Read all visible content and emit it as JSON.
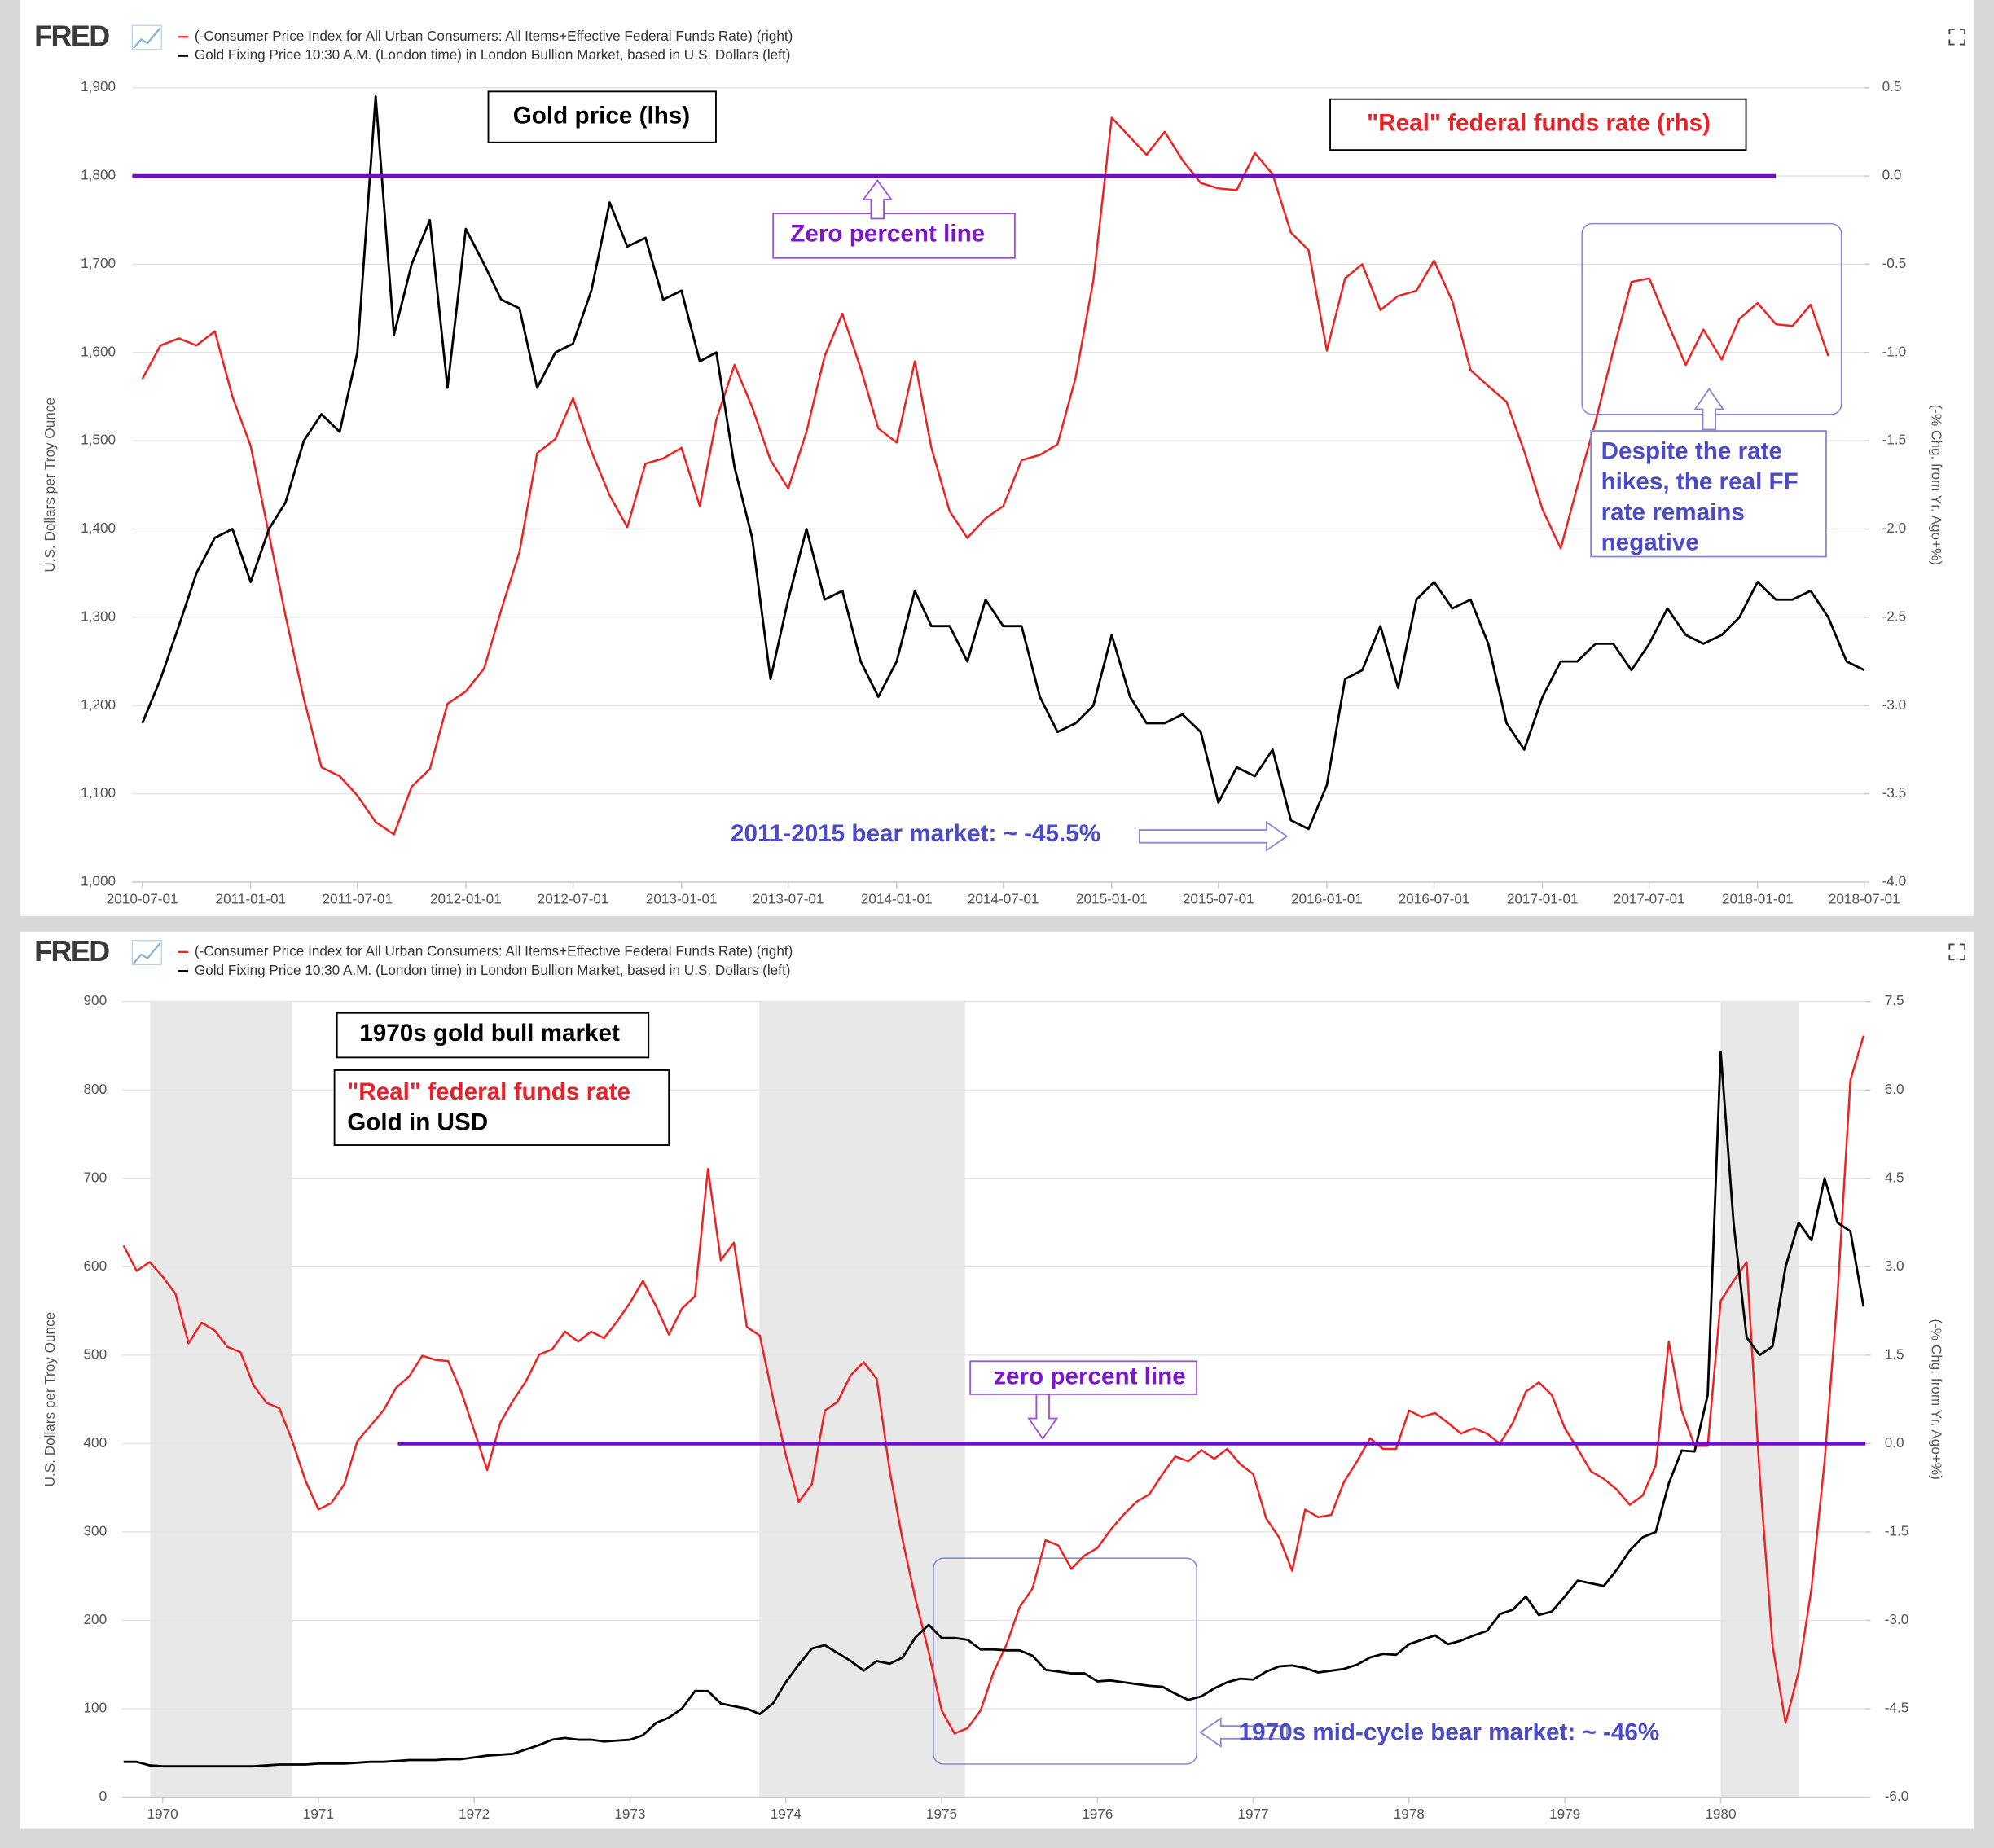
{
  "chart_data": [
    {
      "type": "line",
      "source": "FRED",
      "y_label": "U.S. Dollars per Troy Ounce",
      "y2_label": "(-% Chg. from Yr. Ago+%)",
      "xlim": [
        "2010-06-14",
        "2018-07-01"
      ],
      "xticks": [
        "2010-07-01",
        "2011-01-01",
        "2011-07-01",
        "2012-01-01",
        "2012-07-01",
        "2013-01-01",
        "2013-07-01",
        "2014-01-01",
        "2014-07-01",
        "2015-01-01",
        "2015-07-01",
        "2016-01-01",
        "2016-07-01",
        "2017-01-01",
        "2017-07-01",
        "2018-01-01",
        "2018-07-01"
      ],
      "ylim": [
        1000,
        1900
      ],
      "yticks": [
        {
          "value": 1000,
          "label": "1,000"
        },
        {
          "value": 1100,
          "label": "1,100"
        },
        {
          "value": 1200,
          "label": "1,200"
        },
        {
          "value": 1300,
          "label": "1,300"
        },
        {
          "value": 1400,
          "label": "1,400"
        },
        {
          "value": 1500,
          "label": "1,500"
        },
        {
          "value": 1600,
          "label": "1,600"
        },
        {
          "value": 1700,
          "label": "1,700"
        },
        {
          "value": 1800,
          "label": "1,800"
        },
        {
          "value": 1900,
          "label": "1,900"
        }
      ],
      "y2lim": [
        -4,
        0.5
      ],
      "y2ticks": [
        {
          "value": -4,
          "label": "-4.0"
        },
        -3.5,
        {
          "value": -3,
          "label": "-3.0"
        },
        -2.5,
        {
          "value": -2,
          "label": "-2.0"
        },
        -1.5,
        {
          "value": -1,
          "label": "-1.0"
        },
        -0.5,
        {
          "value": 0,
          "label": "0.0"
        },
        0.5
      ],
      "grid": true,
      "x": [
        "2010-07-01",
        "2010-08-01",
        "2010-09-01",
        "2010-10-01",
        "2010-11-01",
        "2010-12-01",
        "2011-01-01",
        "2011-02-01",
        "2011-03-01",
        "2011-04-01",
        "2011-05-01",
        "2011-06-01",
        "2011-07-01",
        "2011-08-01",
        "2011-09-01",
        "2011-10-01",
        "2011-11-01",
        "2011-12-01",
        "2012-01-01",
        "2012-02-01",
        "2012-03-01",
        "2012-04-01",
        "2012-05-01",
        "2012-06-01",
        "2012-07-01",
        "2012-08-01",
        "2012-09-01",
        "2012-10-01",
        "2012-11-01",
        "2012-12-01",
        "2013-01-01",
        "2013-02-01",
        "2013-03-01",
        "2013-04-01",
        "2013-05-01",
        "2013-06-01",
        "2013-07-01",
        "2013-08-01",
        "2013-09-01",
        "2013-10-01",
        "2013-11-01",
        "2013-12-01",
        "2014-01-01",
        "2014-02-01",
        "2014-03-01",
        "2014-04-01",
        "2014-05-01",
        "2014-06-01",
        "2014-07-01",
        "2014-08-01",
        "2014-09-01",
        "2014-10-01",
        "2014-11-01",
        "2014-12-01",
        "2015-01-01",
        "2015-02-01",
        "2015-03-01",
        "2015-04-01",
        "2015-05-01",
        "2015-06-01",
        "2015-07-01",
        "2015-08-01",
        "2015-09-01",
        "2015-10-01",
        "2015-11-01",
        "2015-12-01",
        "2016-01-01",
        "2016-02-01",
        "2016-03-01",
        "2016-04-01",
        "2016-05-01",
        "2016-06-01",
        "2016-07-01",
        "2016-08-01",
        "2016-09-01",
        "2016-10-01",
        "2016-11-01",
        "2016-12-01",
        "2017-01-01",
        "2017-02-01",
        "2017-03-01",
        "2017-04-01",
        "2017-05-01",
        "2017-06-01",
        "2017-07-01",
        "2017-08-01",
        "2017-09-01",
        "2017-10-01",
        "2017-11-01",
        "2017-12-01",
        "2018-01-01",
        "2018-02-01",
        "2018-03-01",
        "2018-04-01",
        "2018-05-01",
        "2018-06-01",
        "2018-07-01"
      ],
      "series": [
        {
          "name": "(-Consumer Price Index for All Urban Consumers: All Items+Effective Federal Funds Rate) (right)",
          "color": "#ee2222",
          "axis": "y2",
          "values": [
            -1.15,
            -0.96,
            -0.92,
            -0.96,
            -0.88,
            -1.25,
            -1.53,
            -2.03,
            -2.49,
            -2.96,
            -3.35,
            -3.4,
            -3.51,
            -3.66,
            -3.73,
            -3.46,
            -3.36,
            -2.99,
            -2.92,
            -2.79,
            -2.46,
            -2.13,
            -1.57,
            -1.49,
            -1.26,
            -1.56,
            -1.81,
            -1.99,
            -1.63,
            -1.6,
            -1.54,
            -1.87,
            -1.38,
            -1.07,
            -1.31,
            -1.61,
            -1.77,
            -1.45,
            -1.02,
            -0.78,
            -1.09,
            -1.43,
            -1.51,
            -1.05,
            -1.54,
            -1.9,
            -2.05,
            -1.94,
            -1.87,
            -1.61,
            -1.58,
            -1.52,
            -1.14,
            -0.59,
            0.33,
            0.22,
            0.12,
            0.25,
            0.09,
            -0.04,
            -0.07,
            -0.08,
            0.13,
            0.01,
            -0.32,
            -0.42,
            -0.99,
            -0.58,
            -0.5,
            -0.76,
            -0.68,
            -0.65,
            -0.48,
            -0.71,
            -1.1,
            -1.19,
            -1.28,
            -1.56,
            -1.89,
            -2.11,
            -1.76,
            -1.39,
            -0.99,
            -0.6,
            -0.58,
            -0.83,
            -1.07,
            -0.87,
            -1.04,
            -0.81,
            -0.72,
            -0.84,
            -0.85,
            -0.73,
            -1.02,
            null,
            null
          ]
        },
        {
          "name": "Gold Fixing Price 10:30 A.M. (London time) in London Bullion Market, based in U.S. Dollars (left)",
          "color": "#000000",
          "axis": "y",
          "values": [
            1180,
            1230,
            1290,
            1350,
            1390,
            1400,
            1340,
            1400,
            1430,
            1500,
            1530,
            1510,
            1600,
            1890,
            1620,
            1700,
            1750,
            1560,
            1740,
            1700,
            1660,
            1650,
            1560,
            1600,
            1610,
            1670,
            1770,
            1720,
            1730,
            1660,
            1670,
            1590,
            1600,
            1470,
            1390,
            1230,
            1320,
            1400,
            1320,
            1330,
            1250,
            1210,
            1250,
            1330,
            1290,
            1290,
            1250,
            1320,
            1290,
            1290,
            1210,
            1170,
            1180,
            1200,
            1280,
            1210,
            1180,
            1180,
            1190,
            1170,
            1090,
            1130,
            1120,
            1150,
            1070,
            1060,
            1110,
            1230,
            1240,
            1290,
            1220,
            1320,
            1340,
            1310,
            1320,
            1270,
            1180,
            1150,
            1210,
            1250,
            1250,
            1270,
            1270,
            1240,
            1270,
            1310,
            1280,
            1270,
            1280,
            1300,
            1340,
            1320,
            1320,
            1330,
            1300,
            1250,
            1240
          ]
        }
      ],
      "reference_line": {
        "value": 0,
        "axis": "y2",
        "from": "2010-06-14",
        "to": "2018-02-01",
        "color": "#7010c0"
      },
      "annotations": [
        {
          "lines": [
            "Gold price (lhs)"
          ],
          "color": "#000000"
        },
        {
          "lines": [
            "\"Real\" federal funds rate (rhs)"
          ],
          "color": "#e8222a"
        },
        {
          "lines": [
            "Zero percent line"
          ],
          "color": "#7b17c9"
        },
        {
          "lines": [
            "Despite the rate",
            "hikes, the real FF",
            "rate remains",
            "negative"
          ],
          "color": "#4b4bc8"
        },
        {
          "lines": [
            "2011-2015 bear market: ~ -45.5%"
          ],
          "color": "#4b4bc8"
        }
      ]
    },
    {
      "type": "line",
      "source": "FRED",
      "y_label": "U.S. Dollars per Troy Ounce",
      "y2_label": "(-% Chg. from Yr. Ago+%)",
      "xlim": [
        1969.74,
        1980.93
      ],
      "xticks": [
        1970,
        1971,
        1972,
        1973,
        1974,
        1975,
        1976,
        1977,
        1978,
        1979,
        1980
      ],
      "ylim": [
        0,
        900
      ],
      "yticks": [
        0,
        100,
        200,
        300,
        400,
        500,
        600,
        700,
        800,
        900
      ],
      "y2lim": [
        -6,
        7.5
      ],
      "y2ticks": [
        {
          "value": -6,
          "label": "-6.0"
        },
        -4.5,
        {
          "value": -3,
          "label": "-3.0"
        },
        -1.5,
        {
          "value": 0,
          "label": "0.0"
        },
        1.5,
        {
          "value": 3,
          "label": "3.0"
        },
        4.5,
        {
          "value": 6,
          "label": "6.0"
        },
        7.5
      ],
      "grid": true,
      "recessions": [
        [
          1969.92,
          1970.83
        ],
        [
          1973.83,
          1975.15
        ],
        [
          1980.0,
          1980.5
        ]
      ],
      "recession_color": "#e8e8e8",
      "x": [
        1969.75,
        1969.833,
        1969.917,
        1970,
        1970.083,
        1970.167,
        1970.25,
        1970.333,
        1970.417,
        1970.5,
        1970.583,
        1970.667,
        1970.75,
        1970.833,
        1970.917,
        1971,
        1971.083,
        1971.167,
        1971.25,
        1971.333,
        1971.417,
        1971.5,
        1971.583,
        1971.667,
        1971.75,
        1971.833,
        1971.917,
        1972,
        1972.083,
        1972.167,
        1972.25,
        1972.333,
        1972.417,
        1972.5,
        1972.583,
        1972.667,
        1972.75,
        1972.833,
        1972.917,
        1973,
        1973.083,
        1973.167,
        1973.25,
        1973.333,
        1973.417,
        1973.5,
        1973.583,
        1973.667,
        1973.75,
        1973.833,
        1973.917,
        1974,
        1974.083,
        1974.167,
        1974.25,
        1974.333,
        1974.417,
        1974.5,
        1974.583,
        1974.667,
        1974.75,
        1974.833,
        1974.917,
        1975,
        1975.083,
        1975.167,
        1975.25,
        1975.333,
        1975.417,
        1975.5,
        1975.583,
        1975.667,
        1975.75,
        1975.833,
        1975.917,
        1976,
        1976.083,
        1976.167,
        1976.25,
        1976.333,
        1976.417,
        1976.5,
        1976.583,
        1976.667,
        1976.75,
        1976.833,
        1976.917,
        1977,
        1977.083,
        1977.167,
        1977.25,
        1977.333,
        1977.417,
        1977.5,
        1977.583,
        1977.667,
        1977.75,
        1977.833,
        1977.917,
        1978,
        1978.083,
        1978.167,
        1978.25,
        1978.333,
        1978.417,
        1978.5,
        1978.583,
        1978.667,
        1978.75,
        1978.833,
        1978.917,
        1979,
        1979.083,
        1979.167,
        1979.25,
        1979.333,
        1979.417,
        1979.5,
        1979.583,
        1979.667,
        1979.75,
        1979.833,
        1979.917,
        1980,
        1980.083,
        1980.167,
        1980.25,
        1980.333,
        1980.417,
        1980.5,
        1980.583,
        1980.667,
        1980.75,
        1980.833,
        1980.917
      ],
      "series": [
        {
          "name": "(-Consumer Price Index for All Urban Consumers: All Items+Effective Federal Funds Rate) (right)",
          "color": "#ee2222",
          "axis": "y2",
          "values": [
            3.36,
            2.93,
            3.08,
            2.83,
            2.54,
            1.7,
            2.05,
            1.92,
            1.64,
            1.55,
            0.99,
            0.69,
            0.6,
            0.04,
            -0.63,
            -1.12,
            -1.01,
            -0.69,
            0.04,
            0.3,
            0.56,
            0.95,
            1.14,
            1.49,
            1.42,
            1.4,
            0.88,
            0.22,
            -0.45,
            0.35,
            0.73,
            1.06,
            1.51,
            1.6,
            1.9,
            1.73,
            1.9,
            1.79,
            2.07,
            2.39,
            2.76,
            2.33,
            1.85,
            2.29,
            2.5,
            4.66,
            3.11,
            3.41,
            1.98,
            1.83,
            0.78,
            -0.19,
            -0.99,
            -0.69,
            0.56,
            0.71,
            1.16,
            1.38,
            1.1,
            -0.47,
            -1.64,
            -2.65,
            -3.54,
            -4.53,
            -4.92,
            -4.83,
            -4.53,
            -3.88,
            -3.41,
            -2.78,
            -2.46,
            -1.64,
            -1.73,
            -2.13,
            -1.9,
            -1.77,
            -1.47,
            -1.21,
            -0.99,
            -0.86,
            -0.52,
            -0.22,
            -0.3,
            -0.11,
            -0.26,
            -0.09,
            -0.35,
            -0.52,
            -1.27,
            -1.6,
            -2.16,
            -1.12,
            -1.25,
            -1.21,
            -0.65,
            -0.3,
            0.09,
            -0.09,
            -0.09,
            0.56,
            0.45,
            0.52,
            0.35,
            0.17,
            0.26,
            0.17,
            0,
            0.35,
            0.88,
            1.04,
            0.82,
            0.26,
            -0.09,
            -0.47,
            -0.6,
            -0.78,
            -1.04,
            -0.88,
            -0.37,
            1.73,
            0.56,
            -0.04,
            -0.04,
            2.42,
            2.76,
            3.08,
            -0.52,
            -3.43,
            -4.74,
            -3.88,
            -2.46,
            -0.3,
            2.5,
            6.17,
            6.92
          ]
        },
        {
          "name": "Gold Fixing Price 10:30 A.M. (London time) in London Bullion Market, based in U.S. Dollars (left)",
          "color": "#000000",
          "axis": "y",
          "values": [
            40,
            40,
            36,
            35,
            35,
            35,
            35,
            35,
            35,
            35,
            35,
            36,
            37,
            37,
            37,
            38,
            38,
            38,
            39,
            40,
            40,
            41,
            42,
            42,
            42,
            43,
            43,
            45,
            47,
            48,
            49,
            54,
            59,
            65,
            67,
            65,
            65,
            63,
            64,
            65,
            70,
            84,
            90,
            100,
            120,
            120,
            106,
            103,
            100,
            94,
            106,
            130,
            150,
            168,
            172,
            163,
            154,
            143,
            154,
            151,
            158,
            181,
            195,
            180,
            180,
            178,
            167,
            167,
            166,
            166,
            160,
            144,
            142,
            140,
            140,
            131,
            132,
            130,
            128,
            126,
            125,
            117,
            110,
            114,
            123,
            130,
            134,
            133,
            142,
            148,
            149,
            146,
            141,
            143,
            145,
            150,
            158,
            162,
            161,
            173,
            178,
            183,
            173,
            177,
            183,
            188,
            207,
            212,
            227,
            206,
            210,
            227,
            245,
            242,
            239,
            257,
            279,
            294,
            300,
            355,
            392,
            391,
            455,
            843,
            650,
            520,
            500,
            510,
            600,
            650,
            630,
            700,
            650,
            640,
            555
          ]
        }
      ],
      "reference_line": {
        "value": 0,
        "axis": "y2",
        "from": 1971.51,
        "to": 1980.93,
        "color": "#7010c0"
      },
      "annotations": [
        {
          "lines": [
            "1970s gold bull market"
          ],
          "color": "#000000"
        },
        {
          "lines": [
            "\"Real\" federal funds rate"
          ],
          "color": "#e8222a"
        },
        {
          "lines": [
            "Gold in USD"
          ],
          "color": "#000000"
        },
        {
          "lines": [
            "zero percent line"
          ],
          "color": "#7b17c9"
        },
        {
          "lines": [
            "1970s mid-cycle bear market: ~ -46%"
          ],
          "color": "#4b4bc8"
        }
      ]
    }
  ]
}
